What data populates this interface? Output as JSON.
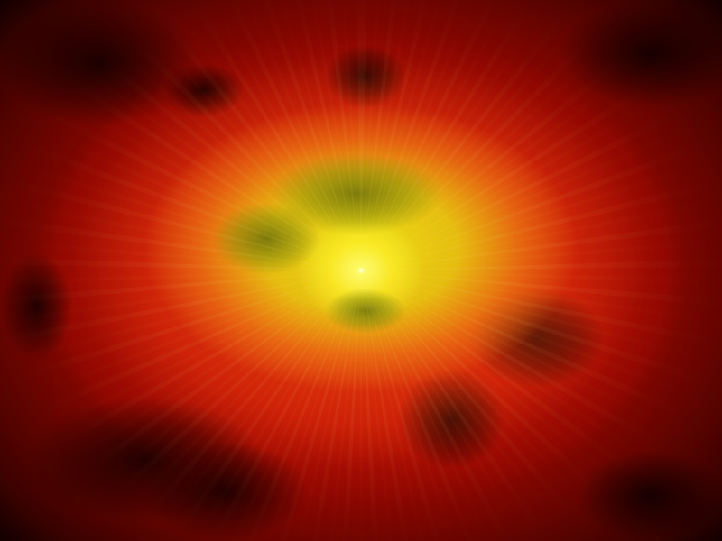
{
  "scene": {
    "subject": "explosion",
    "palette": {
      "core": "#e8e314",
      "inner_glow": "#f08c14",
      "nebula": "#d81e0a",
      "outer": "#7a0400",
      "background": "#000000",
      "swirl": "#6a7810"
    }
  }
}
